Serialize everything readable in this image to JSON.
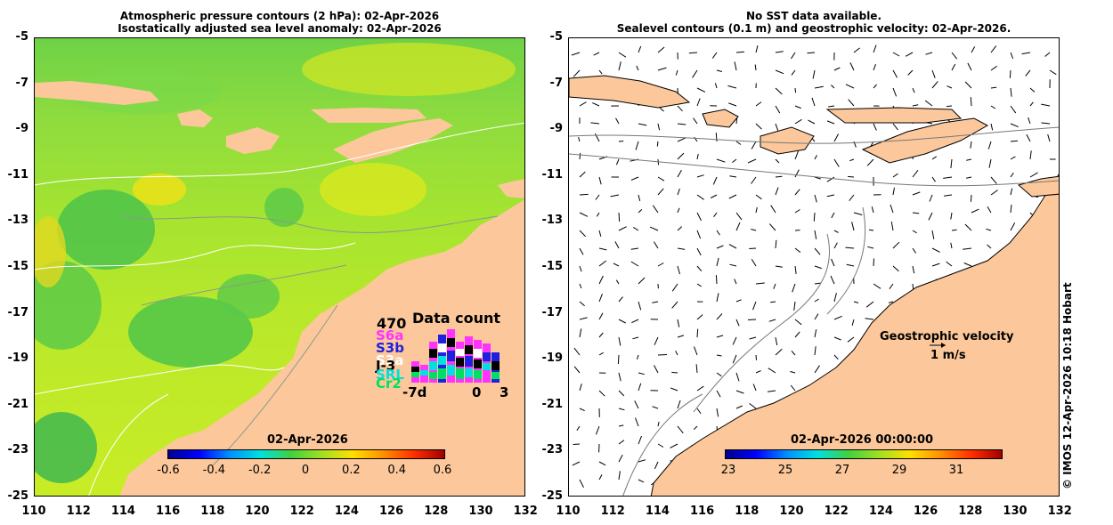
{
  "left_panel": {
    "title_line1": "Atmospheric pressure contours (2 hPa): 02-Apr-2026",
    "title_line2": "Isostatically adjusted sea level anomaly: 02-Apr-2026",
    "colorbar_title": "02-Apr-2026",
    "colorbar_ticks": [
      "-0.6",
      "-0.4",
      "-0.2",
      "0",
      "0.2",
      "0.4",
      "0.6"
    ],
    "data_count": {
      "title": "Data count",
      "max": "470",
      "satellites": [
        {
          "name": "S6a",
          "color": "#ff33ff"
        },
        {
          "name": "S3b",
          "color": "#2020e0"
        },
        {
          "name": "S3a",
          "color": "#ffffff"
        },
        {
          "name": "J-3",
          "color": "#000000"
        },
        {
          "name": "SRL",
          "color": "#00e0e0"
        },
        {
          "name": "Cr2",
          "color": "#00e060"
        }
      ],
      "axis_labels": [
        "-7d",
        "0",
        "3"
      ]
    }
  },
  "right_panel": {
    "title_line1": "No SST data available.",
    "title_line2": "Sealevel contours (0.1 m) and geostrophic velocity: 02-Apr-2026.",
    "colorbar_title": "02-Apr-2026 00:00:00",
    "colorbar_ticks": [
      "23",
      "25",
      "27",
      "29",
      "31"
    ],
    "velocity_label": "Geostrophic velocity",
    "velocity_scale": "1 m/s"
  },
  "axes": {
    "y_ticks": [
      "-5",
      "-7",
      "-9",
      "-11",
      "-13",
      "-15",
      "-17",
      "-19",
      "-21",
      "-23",
      "-25"
    ],
    "x_ticks": [
      "110",
      "112",
      "114",
      "116",
      "118",
      "120",
      "122",
      "124",
      "126",
      "128",
      "130",
      "132"
    ]
  },
  "colors": {
    "land": "#fcc89b",
    "ocean_left": "#a6e430",
    "ocean_right": "#ffffff"
  },
  "copyright": "© IMOS 12-Apr-2026 10:18 Hobart"
}
